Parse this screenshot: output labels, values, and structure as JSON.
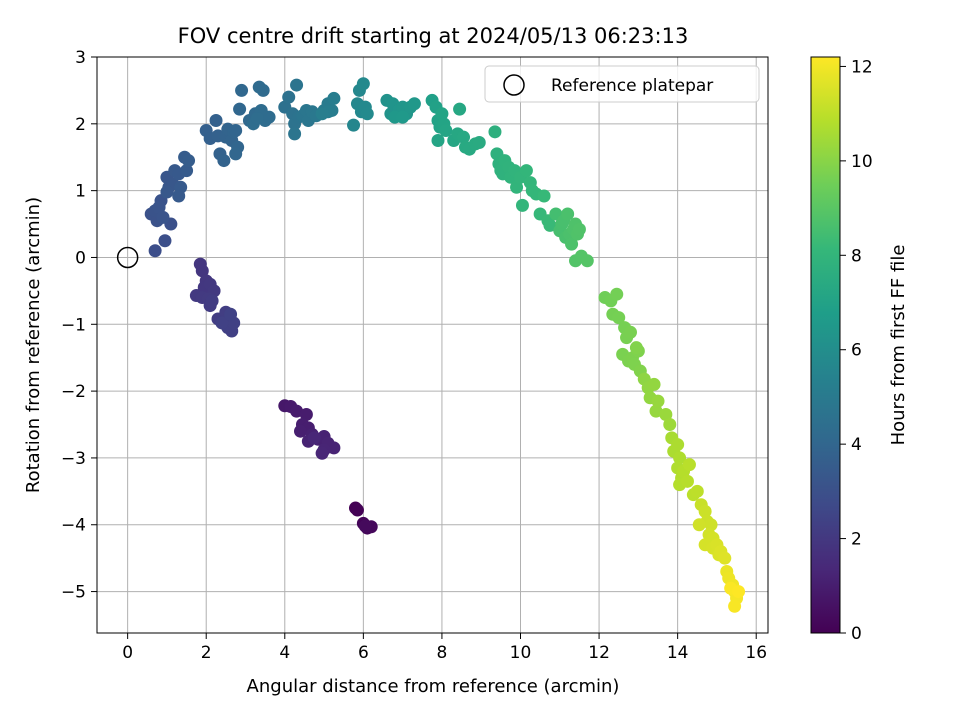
{
  "chart_data": {
    "type": "scatter",
    "title": "FOV centre drift starting at 2024/05/13 06:23:13",
    "xlabel": "Angular distance from reference (arcmin)",
    "ylabel": "Rotation from reference (arcmin)",
    "xlim": [
      -0.78,
      16.3
    ],
    "ylim": [
      -5.62,
      3.0
    ],
    "xticks": [
      0,
      2,
      4,
      6,
      8,
      10,
      12,
      14,
      16
    ],
    "yticks": [
      -5,
      -4,
      -3,
      -2,
      -1,
      0,
      1,
      2,
      3
    ],
    "grid": true,
    "legend": {
      "placement": "top-right",
      "entries": [
        "Reference platepar"
      ]
    },
    "reference_point": {
      "x": 0,
      "y": 0,
      "label": "Reference platepar"
    },
    "colorbar": {
      "label": "Hours from first FF file",
      "range": [
        0,
        12.2
      ],
      "ticks": [
        0,
        2,
        4,
        6,
        8,
        10,
        12
      ],
      "colormap": "viridis",
      "colormap_stops": [
        "#440154",
        "#482878",
        "#3e4a89",
        "#31688e",
        "#26828e",
        "#1f9e89",
        "#35b779",
        "#6ece58",
        "#b5de2b",
        "#fde725"
      ]
    },
    "series": [
      {
        "color_by": "hours",
        "points": [
          [
            5.8,
            -3.75,
            0.0
          ],
          [
            5.85,
            -3.78,
            0.05
          ],
          [
            6.0,
            -3.98,
            0.12
          ],
          [
            6.1,
            -4.05,
            0.18
          ],
          [
            6.2,
            -4.03,
            0.25
          ],
          [
            6.05,
            -4.02,
            0.3
          ],
          [
            4.0,
            -2.22,
            0.8
          ],
          [
            4.15,
            -2.23,
            0.85
          ],
          [
            4.3,
            -2.3,
            0.9
          ],
          [
            4.55,
            -2.35,
            0.95
          ],
          [
            4.45,
            -2.5,
            1.0
          ],
          [
            4.6,
            -2.55,
            1.02
          ],
          [
            4.4,
            -2.6,
            1.05
          ],
          [
            4.7,
            -2.65,
            1.1
          ],
          [
            4.85,
            -2.72,
            1.12
          ],
          [
            5.0,
            -2.68,
            1.15
          ],
          [
            4.6,
            -2.75,
            1.18
          ],
          [
            5.1,
            -2.78,
            1.2
          ],
          [
            5.25,
            -2.85,
            1.22
          ],
          [
            5.0,
            -2.88,
            1.25
          ],
          [
            4.95,
            -2.93,
            1.28
          ],
          [
            4.75,
            -2.7,
            1.3
          ],
          [
            1.85,
            -0.1,
            1.9
          ],
          [
            1.9,
            -0.2,
            1.92
          ],
          [
            2.0,
            -0.35,
            1.95
          ],
          [
            1.95,
            -0.45,
            1.97
          ],
          [
            2.1,
            -0.4,
            2.0
          ],
          [
            2.2,
            -0.5,
            2.02
          ],
          [
            1.75,
            -0.57,
            2.05
          ],
          [
            1.9,
            -0.6,
            2.07
          ],
          [
            2.05,
            -0.62,
            2.1
          ],
          [
            2.1,
            -0.72,
            2.12
          ],
          [
            2.15,
            -0.65,
            2.15
          ],
          [
            2.3,
            -0.92,
            2.2
          ],
          [
            2.5,
            -0.82,
            2.22
          ],
          [
            2.45,
            -0.95,
            2.25
          ],
          [
            2.6,
            -0.9,
            2.27
          ],
          [
            2.55,
            -1.05,
            2.3
          ],
          [
            2.65,
            -1.1,
            2.32
          ],
          [
            2.7,
            -0.98,
            2.35
          ],
          [
            2.4,
            -0.98,
            2.37
          ],
          [
            2.62,
            -0.85,
            2.4
          ],
          [
            0.7,
            0.1,
            2.9
          ],
          [
            0.95,
            0.25,
            2.95
          ],
          [
            1.1,
            0.5,
            3.0
          ],
          [
            0.6,
            0.65,
            3.05
          ],
          [
            0.75,
            0.55,
            3.07
          ],
          [
            0.7,
            0.7,
            3.1
          ],
          [
            0.85,
            0.85,
            3.12
          ],
          [
            0.8,
            0.75,
            3.15
          ],
          [
            0.9,
            0.6,
            3.17
          ],
          [
            1.0,
            1.2,
            3.25
          ],
          [
            1.05,
            1.05,
            3.3
          ],
          [
            1.15,
            1.1,
            3.32
          ],
          [
            1.0,
            0.98,
            3.35
          ],
          [
            1.2,
            1.3,
            3.37
          ],
          [
            1.3,
            1.25,
            3.4
          ],
          [
            1.35,
            1.05,
            3.42
          ],
          [
            1.3,
            0.92,
            3.45
          ],
          [
            1.5,
            1.3,
            3.5
          ],
          [
            1.45,
            1.5,
            3.52
          ],
          [
            1.55,
            1.45,
            3.55
          ],
          [
            2.0,
            1.9,
            3.7
          ],
          [
            2.1,
            1.78,
            3.72
          ],
          [
            2.25,
            2.05,
            3.75
          ],
          [
            2.3,
            1.82,
            3.77
          ],
          [
            2.35,
            1.55,
            3.8
          ],
          [
            2.45,
            1.45,
            3.82
          ],
          [
            2.5,
            1.8,
            3.85
          ],
          [
            2.55,
            1.92,
            3.87
          ],
          [
            2.65,
            1.75,
            3.9
          ],
          [
            2.7,
            1.88,
            3.92
          ],
          [
            2.75,
            1.9,
            3.95
          ],
          [
            2.8,
            1.65,
            3.97
          ],
          [
            2.75,
            1.55,
            4.0
          ],
          [
            2.85,
            2.22,
            4.02
          ],
          [
            2.9,
            2.5,
            4.05
          ],
          [
            3.1,
            2.05,
            4.1
          ],
          [
            3.25,
            2.15,
            4.15
          ],
          [
            3.35,
            2.55,
            4.2
          ],
          [
            3.45,
            2.5,
            4.22
          ],
          [
            3.5,
            2.05,
            4.25
          ],
          [
            3.6,
            2.1,
            4.27
          ],
          [
            3.4,
            2.2,
            4.3
          ],
          [
            3.2,
            2.0,
            4.32
          ],
          [
            3.3,
            2.08,
            4.35
          ],
          [
            4.0,
            2.25,
            4.5
          ],
          [
            4.1,
            2.4,
            4.55
          ],
          [
            4.2,
            2.15,
            4.6
          ],
          [
            4.25,
            2.0,
            4.62
          ],
          [
            4.35,
            2.1,
            4.65
          ],
          [
            4.3,
            2.58,
            4.7
          ],
          [
            4.25,
            1.85,
            4.72
          ],
          [
            4.45,
            2.12,
            4.75
          ],
          [
            4.55,
            2.2,
            4.78
          ],
          [
            4.6,
            2.05,
            4.8
          ],
          [
            4.7,
            2.18,
            4.85
          ],
          [
            4.8,
            2.12,
            4.88
          ],
          [
            5.0,
            2.2,
            5.0
          ],
          [
            5.1,
            2.3,
            5.05
          ],
          [
            5.2,
            2.2,
            5.1
          ],
          [
            5.25,
            2.38,
            5.15
          ],
          [
            5.1,
            2.18,
            5.18
          ],
          [
            4.95,
            2.15,
            5.2
          ],
          [
            5.75,
            1.98,
            5.6
          ],
          [
            5.85,
            2.3,
            5.65
          ],
          [
            5.9,
            2.5,
            5.68
          ],
          [
            5.95,
            2.18,
            5.72
          ],
          [
            6.0,
            2.6,
            5.75
          ],
          [
            6.05,
            2.25,
            5.78
          ],
          [
            6.1,
            2.15,
            5.8
          ],
          [
            6.6,
            2.35,
            6.2
          ],
          [
            6.7,
            2.15,
            6.25
          ],
          [
            6.75,
            2.3,
            6.3
          ],
          [
            6.9,
            2.2,
            6.35
          ],
          [
            7.0,
            2.25,
            6.38
          ],
          [
            7.1,
            2.15,
            6.4
          ],
          [
            7.2,
            2.25,
            6.45
          ],
          [
            7.3,
            2.3,
            6.48
          ],
          [
            6.8,
            2.1,
            6.5
          ],
          [
            7.0,
            2.1,
            6.52
          ],
          [
            7.75,
            2.35,
            6.9
          ],
          [
            7.85,
            2.25,
            6.95
          ],
          [
            7.9,
            2.05,
            7.0
          ],
          [
            7.95,
            1.95,
            7.05
          ],
          [
            8.0,
            2.15,
            7.08
          ],
          [
            8.05,
            2.0,
            7.1
          ],
          [
            7.9,
            1.75,
            7.12
          ],
          [
            8.1,
            1.9,
            7.15
          ],
          [
            8.3,
            1.75,
            7.2
          ],
          [
            8.4,
            1.85,
            7.25
          ],
          [
            8.45,
            2.22,
            7.28
          ],
          [
            8.55,
            1.8,
            7.32
          ],
          [
            8.6,
            1.65,
            7.35
          ],
          [
            8.7,
            1.62,
            7.38
          ],
          [
            8.85,
            1.7,
            7.42
          ],
          [
            8.95,
            1.72,
            7.45
          ],
          [
            9.35,
            1.88,
            7.7
          ],
          [
            9.4,
            1.55,
            7.75
          ],
          [
            9.45,
            1.4,
            7.78
          ],
          [
            9.5,
            1.3,
            7.8
          ],
          [
            9.55,
            1.25,
            7.82
          ],
          [
            9.6,
            1.45,
            7.85
          ],
          [
            9.7,
            1.35,
            7.88
          ],
          [
            9.75,
            1.2,
            7.9
          ],
          [
            9.85,
            1.3,
            7.92
          ],
          [
            9.9,
            1.05,
            7.95
          ],
          [
            10.0,
            1.2,
            7.98
          ],
          [
            10.05,
            0.78,
            8.0
          ],
          [
            10.15,
            1.3,
            8.02
          ],
          [
            10.25,
            1.12,
            8.05
          ],
          [
            10.3,
            1.0,
            8.08
          ],
          [
            10.4,
            0.95,
            8.1
          ],
          [
            10.5,
            0.65,
            8.15
          ],
          [
            10.6,
            0.92,
            8.18
          ],
          [
            10.7,
            0.55,
            8.2
          ],
          [
            10.75,
            0.48,
            8.22
          ],
          [
            10.9,
            0.65,
            8.5
          ],
          [
            11.0,
            0.4,
            8.55
          ],
          [
            11.05,
            0.5,
            8.58
          ],
          [
            11.1,
            0.55,
            8.6
          ],
          [
            11.15,
            0.3,
            8.62
          ],
          [
            11.2,
            0.65,
            8.65
          ],
          [
            11.25,
            0.35,
            8.68
          ],
          [
            11.3,
            0.2,
            8.7
          ],
          [
            11.35,
            0.42,
            8.72
          ],
          [
            11.4,
            0.5,
            8.75
          ],
          [
            11.45,
            0.35,
            8.78
          ],
          [
            11.5,
            0.42,
            8.8
          ],
          [
            11.4,
            -0.05,
            8.85
          ],
          [
            11.55,
            0.02,
            8.88
          ],
          [
            11.7,
            -0.05,
            8.9
          ],
          [
            12.15,
            -0.6,
            9.5
          ],
          [
            12.3,
            -0.65,
            9.55
          ],
          [
            12.45,
            -0.55,
            9.58
          ],
          [
            12.35,
            -0.85,
            9.6
          ],
          [
            12.5,
            -0.9,
            9.62
          ],
          [
            12.65,
            -1.05,
            9.65
          ],
          [
            12.7,
            -1.2,
            9.68
          ],
          [
            12.8,
            -1.12,
            9.7
          ],
          [
            12.6,
            -1.45,
            9.72
          ],
          [
            12.75,
            -1.55,
            9.75
          ],
          [
            12.85,
            -1.5,
            9.78
          ],
          [
            12.9,
            -1.6,
            9.8
          ],
          [
            13.0,
            -1.4,
            9.82
          ],
          [
            13.05,
            -1.7,
            9.85
          ],
          [
            12.95,
            -1.35,
            9.88
          ],
          [
            13.15,
            -1.82,
            10.1
          ],
          [
            13.25,
            -1.95,
            10.15
          ],
          [
            13.3,
            -2.1,
            10.18
          ],
          [
            13.4,
            -1.9,
            10.2
          ],
          [
            13.45,
            -2.3,
            10.25
          ],
          [
            13.5,
            -2.15,
            10.28
          ],
          [
            13.7,
            -2.35,
            10.32
          ],
          [
            13.8,
            -2.5,
            10.38
          ],
          [
            13.85,
            -2.7,
            10.6
          ],
          [
            13.9,
            -2.9,
            10.65
          ],
          [
            14.0,
            -2.8,
            10.68
          ],
          [
            14.05,
            -3.0,
            10.72
          ],
          [
            14.0,
            -3.15,
            10.75
          ],
          [
            14.1,
            -3.3,
            10.78
          ],
          [
            14.05,
            -3.4,
            10.82
          ],
          [
            14.15,
            -3.2,
            10.85
          ],
          [
            14.25,
            -3.35,
            10.88
          ],
          [
            14.3,
            -3.1,
            10.92
          ],
          [
            14.4,
            -3.55,
            10.95
          ],
          [
            14.5,
            -3.5,
            11.0
          ],
          [
            14.6,
            -3.7,
            11.2
          ],
          [
            14.7,
            -3.8,
            11.25
          ],
          [
            14.75,
            -3.95,
            11.28
          ],
          [
            14.85,
            -4.0,
            11.32
          ],
          [
            14.55,
            -4.0,
            11.35
          ],
          [
            14.8,
            -4.15,
            11.38
          ],
          [
            14.9,
            -4.2,
            11.42
          ],
          [
            14.7,
            -4.3,
            11.45
          ],
          [
            14.9,
            -4.35,
            11.48
          ],
          [
            15.0,
            -4.3,
            11.52
          ],
          [
            15.05,
            -4.45,
            11.55
          ],
          [
            15.1,
            -4.4,
            11.58
          ],
          [
            15.2,
            -4.5,
            11.62
          ],
          [
            15.25,
            -4.7,
            11.85
          ],
          [
            15.3,
            -4.8,
            11.9
          ],
          [
            15.4,
            -4.9,
            11.95
          ],
          [
            15.45,
            -5.0,
            12.0
          ],
          [
            15.5,
            -5.1,
            12.05
          ],
          [
            15.45,
            -5.22,
            12.1
          ],
          [
            15.35,
            -4.95,
            12.15
          ],
          [
            15.55,
            -5.0,
            12.2
          ]
        ]
      }
    ]
  }
}
